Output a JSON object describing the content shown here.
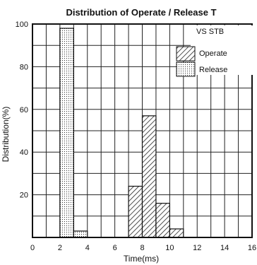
{
  "chart_data": {
    "type": "bar",
    "title": "Distribution of Operate / Release T",
    "xlabel": "Time(ms)",
    "ylabel": "Distribution(%)",
    "xlim": [
      0,
      16
    ],
    "ylim": [
      0,
      100
    ],
    "x_ticks": [
      "0",
      "2",
      "4",
      "6",
      "8",
      "10",
      "12",
      "14",
      "16"
    ],
    "y_ticks": [
      "20",
      "40",
      "60",
      "80",
      "100"
    ],
    "grid": true,
    "bin_width": 1,
    "legend_position": "top-right",
    "series": [
      {
        "name": "Operate",
        "pattern": "diagonal-hatch",
        "bins": [
          {
            "start": 7,
            "value": 24
          },
          {
            "start": 8,
            "value": 57
          },
          {
            "start": 9,
            "value": 16
          },
          {
            "start": 10,
            "value": 4
          }
        ]
      },
      {
        "name": "Release",
        "pattern": "dotted",
        "bins": [
          {
            "start": 2,
            "value": 98
          },
          {
            "start": 3,
            "value": 3
          }
        ]
      }
    ],
    "legend_note": "VS STB"
  }
}
